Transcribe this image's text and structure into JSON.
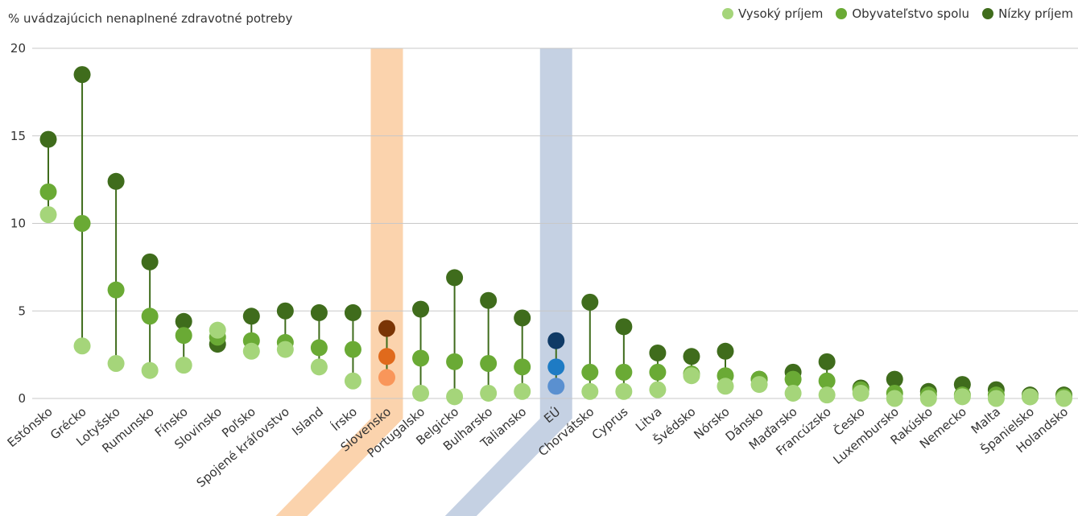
{
  "chart_data": {
    "type": "scatter",
    "ylabel": "% uvádzajúcich nenaplnené zdravotné potreby",
    "ylim": [
      0,
      20
    ],
    "yticks": [
      0,
      5,
      10,
      15,
      20
    ],
    "grid": true,
    "legend_position": "top-right",
    "categories": [
      "Estónsko",
      "Grécko",
      "Lotyšsko",
      "Rumunsko",
      "Fínsko",
      "Slovinsko",
      "Poľsko",
      "Spojené kráľovstvo",
      "Island",
      "Írsko",
      "Slovensko",
      "Portugalsko",
      "Belgicko",
      "Bulharsko",
      "Taliansko",
      "EÚ",
      "Chorvátsko",
      "Cyprus",
      "Litva",
      "Švédsko",
      "Nórsko",
      "Dánsko",
      "Maďarsko",
      "Francúzsko",
      "Česko",
      "Luxembursko",
      "Rakúsko",
      "Nemecko",
      "Malta",
      "Španielsko",
      "Holandsko"
    ],
    "highlighted": {
      "Slovensko": "slovakia",
      "EÚ": "eu"
    },
    "series": [
      {
        "name": "Vysoký príjem",
        "color": "#a5d57a",
        "values": [
          10.5,
          3.0,
          2.0,
          1.6,
          1.9,
          3.9,
          2.7,
          2.8,
          1.8,
          1.0,
          1.2,
          0.3,
          0.1,
          0.3,
          0.4,
          0.7,
          0.4,
          0.4,
          0.5,
          1.3,
          0.7,
          0.8,
          0.3,
          0.2,
          0.3,
          0.0,
          0.0,
          0.1,
          0.0,
          0.1,
          0.0
        ]
      },
      {
        "name": "Obyvateľstvo spolu",
        "color": "#6aaa35",
        "values": [
          11.8,
          10.0,
          6.2,
          4.7,
          3.6,
          3.5,
          3.3,
          3.2,
          2.9,
          2.8,
          2.4,
          2.3,
          2.1,
          2.0,
          1.8,
          1.8,
          1.5,
          1.5,
          1.5,
          1.4,
          1.3,
          1.1,
          1.1,
          1.0,
          0.5,
          0.3,
          0.2,
          0.2,
          0.2,
          0.1,
          0.1
        ]
      },
      {
        "name": "Nízky príjem",
        "color": "#3f6c1c",
        "values": [
          14.8,
          18.5,
          12.4,
          7.8,
          4.4,
          3.1,
          4.7,
          5.0,
          4.9,
          4.9,
          4.0,
          5.1,
          6.9,
          5.6,
          4.6,
          3.3,
          5.5,
          4.1,
          2.6,
          2.4,
          2.7,
          1.1,
          1.5,
          2.1,
          0.6,
          1.1,
          0.4,
          0.8,
          0.5,
          0.2,
          0.2
        ]
      }
    ],
    "highlight_colors": {
      "slovakia": {
        "band": "#fbd3ad",
        "high": "#f9965a",
        "total": "#e06a1c",
        "low": "#7a3505"
      },
      "eu": {
        "band": "#c5d1e3",
        "high": "#5a90d0",
        "total": "#1e7bc4",
        "low": "#0f3a66"
      }
    },
    "stem_color": "#3f6c1c",
    "grid_color": "#c8c8c8"
  }
}
